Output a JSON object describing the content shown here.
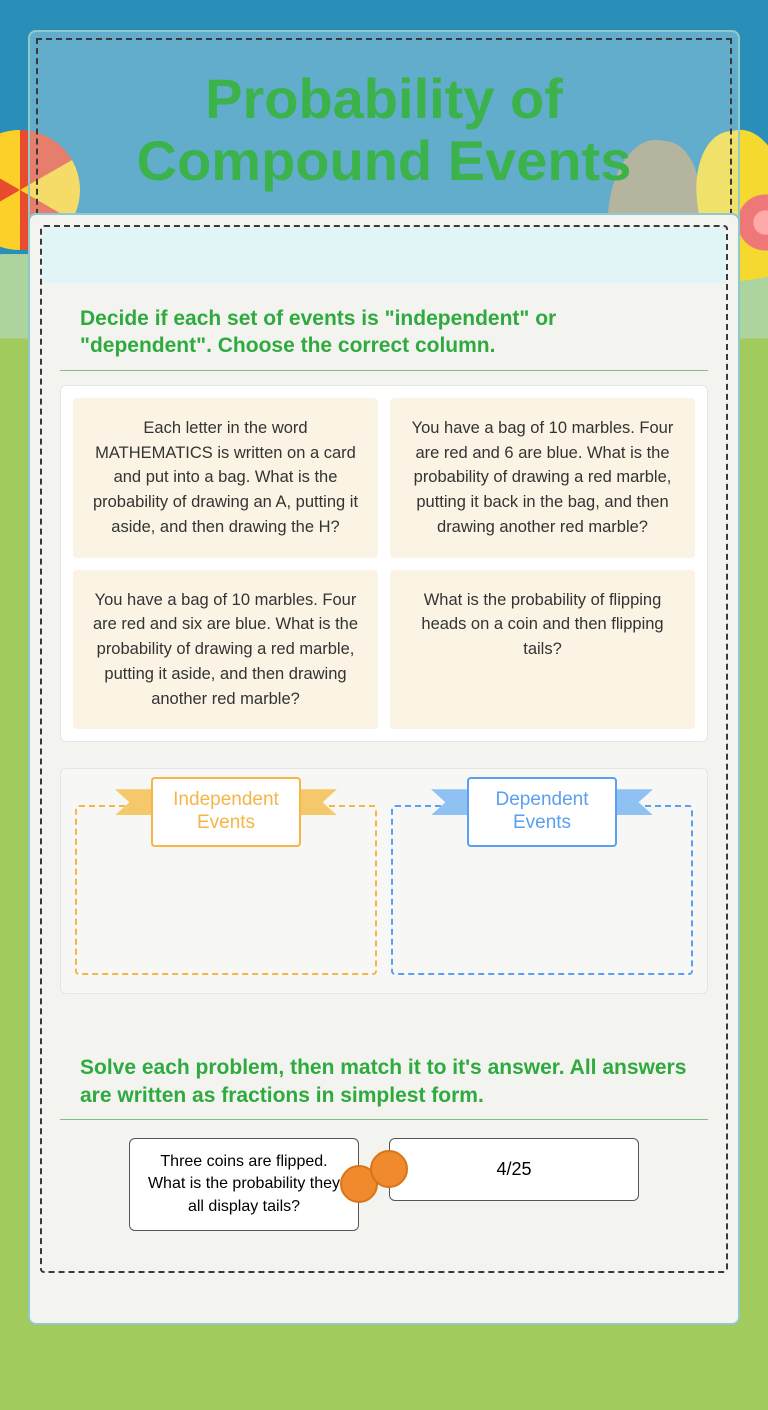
{
  "title": "Probability of Compound Events",
  "section1": {
    "heading": "Decide if each set of events is \"independent\" or \"dependent\".  Choose the correct column.",
    "cards": [
      "Each letter in the word MATHEMATICS is written on a card and put into a bag. What is the probability of drawing an A, putting it aside, and then drawing the H?",
      "You have a bag of 10 marbles. Four are red and 6 are blue. What is the probability of drawing a red marble, putting it back in the bag, and then drawing another red marble?",
      "You have a bag of 10 marbles. Four are red and six are blue. What is the probability of drawing a red marble, putting it aside, and then drawing another red marble?",
      "What is the probability of flipping heads on a coin and then flipping tails?"
    ],
    "dropzones": {
      "independent": "Independent Events",
      "dependent": "Dependent Events"
    }
  },
  "section2": {
    "heading": "Solve each problem, then match it to it's answer. All answers are written as fractions in simplest form.",
    "question": "Three coins are flipped. What is the probability they all display tails?",
    "answer": "4/25"
  },
  "colors": {
    "accent_green": "#3bb24a",
    "indep_orange": "#f5b547",
    "dep_blue": "#5a9ff0",
    "dot_orange": "#f08a2c",
    "card_cream": "#fbf4e5"
  }
}
